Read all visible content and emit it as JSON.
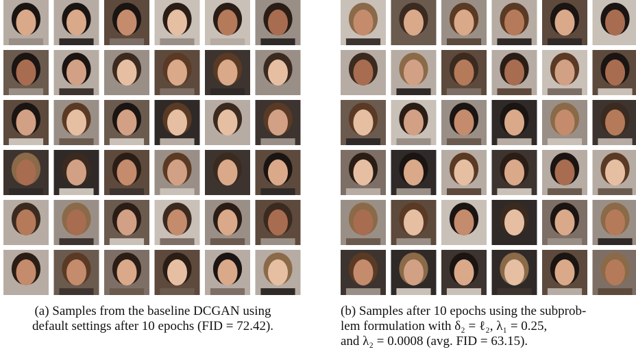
{
  "figure": {
    "panels": [
      {
        "caption_lines": [
          "(a) Samples from the baseline DCGAN using",
          "default settings after 10 epochs (FID = 72.42)."
        ]
      },
      {
        "caption_lines": [
          "(b) Samples after 10 epochs using the subprob-",
          "lem formulation with δ₂ = ℓ₂, λ₁ = 0.25,",
          "and λ₂ = 0.0008 (avg. FID = 63.15)."
        ]
      }
    ]
  }
}
